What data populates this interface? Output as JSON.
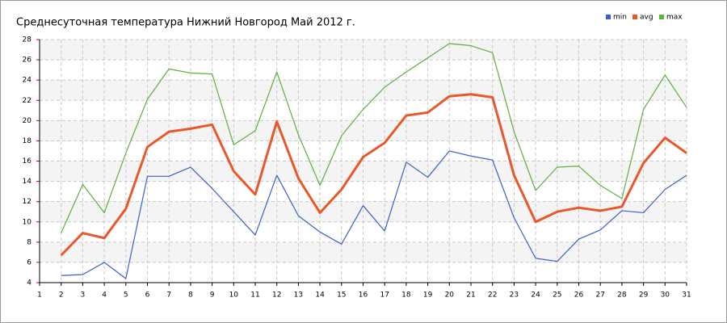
{
  "chart_data": {
    "type": "line",
    "title": "Среднесуточная температура Нижний Новгород  Май 2012 г.",
    "x": [
      1,
      2,
      3,
      4,
      5,
      6,
      7,
      8,
      9,
      10,
      11,
      12,
      13,
      14,
      15,
      16,
      17,
      18,
      19,
      20,
      21,
      22,
      23,
      24,
      25,
      26,
      27,
      28,
      29,
      30,
      31
    ],
    "series": [
      {
        "name": "min",
        "color": "#3a5fcd",
        "values": [
          null,
          4.7,
          4.8,
          6.0,
          4.4,
          14.5,
          14.5,
          15.4,
          13.3,
          11.0,
          8.7,
          14.6,
          10.6,
          9.0,
          7.8,
          11.6,
          9.1,
          15.9,
          14.4,
          17.0,
          16.5,
          16.1,
          10.4,
          6.4,
          6.1,
          8.3,
          9.2,
          11.1,
          10.9,
          13.2,
          14.6
        ]
      },
      {
        "name": "avg",
        "color": "#e8582a",
        "values": [
          null,
          6.7,
          8.9,
          8.4,
          11.3,
          17.4,
          18.9,
          19.2,
          19.6,
          15.0,
          12.7,
          19.9,
          14.3,
          10.9,
          13.2,
          16.4,
          17.8,
          20.5,
          20.8,
          22.4,
          22.6,
          22.3,
          14.6,
          10.0,
          11.0,
          11.4,
          11.1,
          11.5,
          15.8,
          18.3,
          16.8
        ]
      },
      {
        "name": "max",
        "color": "#5cb040",
        "values": [
          null,
          8.9,
          13.7,
          10.9,
          16.8,
          22.1,
          25.1,
          24.7,
          24.6,
          17.6,
          19.0,
          24.8,
          18.6,
          13.6,
          18.5,
          21.1,
          23.3,
          24.8,
          26.2,
          27.6,
          27.4,
          26.7,
          18.9,
          13.1,
          15.4,
          15.5,
          13.6,
          12.3,
          21.1,
          24.5,
          21.3
        ]
      }
    ],
    "xlim": [
      1,
      31
    ],
    "xticks": [
      1,
      2,
      3,
      4,
      5,
      6,
      7,
      8,
      9,
      10,
      11,
      12,
      13,
      14,
      15,
      16,
      17,
      18,
      19,
      20,
      21,
      22,
      23,
      24,
      25,
      26,
      27,
      28,
      29,
      30,
      31
    ],
    "ylim": [
      4,
      28
    ],
    "yticks": [
      4,
      6,
      8,
      10,
      12,
      14,
      16,
      18,
      20,
      22,
      24,
      26,
      28
    ],
    "grid": true,
    "legend": "top-right"
  }
}
